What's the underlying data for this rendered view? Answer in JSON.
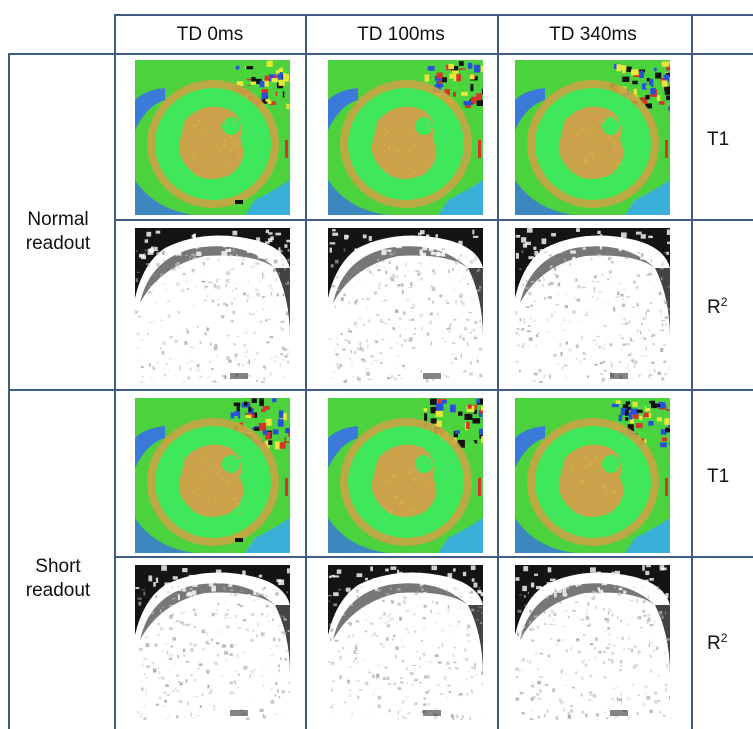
{
  "columns": [
    "TD 0ms",
    "TD 100ms",
    "TD 340ms"
  ],
  "groups": [
    {
      "label_line1": "Normal",
      "label_line2": "readout",
      "rows": [
        {
          "metric": "T1",
          "metric_sup": "",
          "kind": "t1-map"
        },
        {
          "metric": "R",
          "metric_sup": "2",
          "kind": "r2-map"
        }
      ]
    },
    {
      "label_line1": "Short",
      "label_line2": "readout",
      "rows": [
        {
          "metric": "T1",
          "metric_sup": "",
          "kind": "t1-map"
        },
        {
          "metric": "R",
          "metric_sup": "2",
          "kind": "r2-map"
        }
      ]
    }
  ],
  "colors": {
    "grid_line": "#3f5b86",
    "t1_background": "#4bd23c",
    "t1_myocardium": "#3ee85a",
    "t1_blood_pool": "#c9a24a",
    "t1_edge": "#3b7ad8",
    "r2_background": "#ffffff",
    "r2_dark": "#141414"
  }
}
